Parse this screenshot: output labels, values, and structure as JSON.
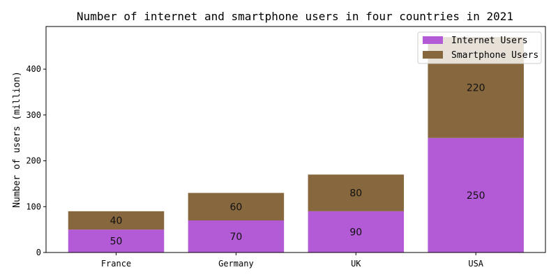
{
  "chart_data": {
    "type": "bar",
    "stacked": true,
    "title": "Number of internet and smartphone users in four countries in 2021",
    "xlabel": "",
    "ylabel": "Number of users (million)",
    "categories": [
      "France",
      "Germany",
      "UK",
      "USA"
    ],
    "series": [
      {
        "name": "Internet Users",
        "values": [
          50,
          70,
          90,
          250
        ],
        "color": "#b35ad6"
      },
      {
        "name": "Smartphone Users",
        "values": [
          40,
          60,
          80,
          220
        ],
        "color": "#87683e"
      }
    ],
    "ylim": [
      0,
      493
    ],
    "yticks": [
      0,
      100,
      200,
      300,
      400
    ],
    "grid": false,
    "legend_position": "top-right"
  }
}
